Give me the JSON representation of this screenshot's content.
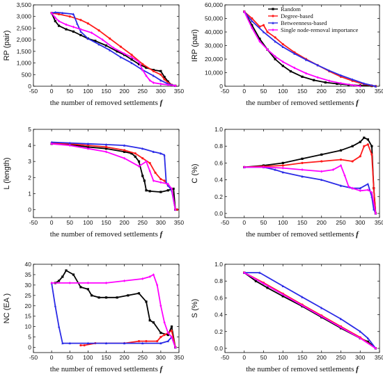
{
  "series_colors": {
    "Random": "#000000",
    "Degree-based": "#ff1a1a",
    "Betweenness-based": "#2a2ae6",
    "Single node-removal importance": "#ff00ff"
  },
  "series_names": [
    "Random",
    "Degree-based",
    "Betweenness-based",
    "Single node-removal importance"
  ],
  "chart_data": [
    {
      "id": "rp",
      "type": "line",
      "title": "",
      "xlabel": "the number of removed settlements",
      "xlabel_symbol": "f",
      "ylabel": "RP (pair)",
      "xlim": [
        -50,
        350
      ],
      "ylim": [
        0,
        3500
      ],
      "xticks": [
        -50,
        0,
        50,
        100,
        150,
        200,
        250,
        300,
        350
      ],
      "yticks": [
        0,
        500,
        1000,
        1500,
        2000,
        2500,
        3000,
        3500
      ],
      "ytick_labels": [
        "0",
        "500",
        "1,000",
        "1,500",
        "2,000",
        "2,500",
        "3,000",
        "3,500"
      ],
      "series": [
        {
          "key": "Random",
          "x": [
            0,
            10,
            20,
            40,
            60,
            80,
            100,
            120,
            150,
            180,
            200,
            220,
            240,
            260,
            280,
            300,
            310,
            320,
            330,
            340
          ],
          "y": [
            3150,
            2800,
            2600,
            2450,
            2350,
            2200,
            2050,
            1950,
            1750,
            1500,
            1350,
            1150,
            950,
            800,
            700,
            650,
            400,
            200,
            50,
            20
          ]
        },
        {
          "key": "Degree-based",
          "x": [
            0,
            20,
            50,
            80,
            100,
            130,
            160,
            190,
            220,
            250,
            280,
            300,
            310,
            320,
            330,
            340
          ],
          "y": [
            3150,
            3100,
            3000,
            2850,
            2700,
            2400,
            2050,
            1700,
            1350,
            950,
            650,
            500,
            300,
            150,
            60,
            20
          ]
        },
        {
          "key": "Betweenness-based",
          "x": [
            0,
            10,
            30,
            60,
            70,
            80,
            100,
            130,
            160,
            190,
            220,
            250,
            280,
            300,
            320,
            340
          ],
          "y": [
            3150,
            3180,
            3150,
            3100,
            2700,
            2350,
            2050,
            1800,
            1550,
            1250,
            1000,
            700,
            450,
            250,
            100,
            20
          ]
        },
        {
          "key": "Single node-removal importance",
          "x": [
            0,
            10,
            20,
            40,
            60,
            80,
            110,
            140,
            170,
            200,
            220,
            240,
            250,
            260,
            270,
            280,
            300,
            320,
            340
          ],
          "y": [
            3150,
            2950,
            2800,
            2650,
            2550,
            2450,
            2300,
            2000,
            1650,
            1400,
            1250,
            1050,
            700,
            450,
            250,
            150,
            100,
            60,
            20
          ]
        }
      ]
    },
    {
      "id": "irp",
      "type": "line",
      "title": "",
      "xlabel": "the number of  removed settlements",
      "xlabel_symbol": "f",
      "ylabel": "IRP (pari)",
      "xlim": [
        -50,
        350
      ],
      "ylim": [
        0,
        60000
      ],
      "xticks": [
        -50,
        0,
        50,
        100,
        150,
        200,
        250,
        300,
        350
      ],
      "yticks": [
        0,
        10000,
        20000,
        30000,
        40000,
        50000,
        60000
      ],
      "ytick_labels": [
        "0",
        "10,000",
        "20,000",
        "30,000",
        "40,000",
        "50,000",
        "60,000"
      ],
      "legend": {
        "placement": "top-right",
        "entries": [
          "Random",
          "Degree-based",
          "Betweenness-based",
          "Single node-removal importance"
        ]
      },
      "series": [
        {
          "key": "Random",
          "x": [
            0,
            20,
            40,
            60,
            80,
            100,
            120,
            150,
            180,
            210,
            240,
            270,
            300,
            330,
            340
          ],
          "y": [
            55000,
            45000,
            35000,
            27000,
            20000,
            15000,
            11000,
            7000,
            4500,
            2800,
            1800,
            1000,
            500,
            200,
            0
          ]
        },
        {
          "key": "Degree-based",
          "x": [
            0,
            20,
            40,
            50,
            60,
            80,
            100,
            130,
            160,
            190,
            220,
            250,
            280,
            310,
            330,
            340
          ],
          "y": [
            55000,
            50000,
            44000,
            45000,
            40000,
            36000,
            31000,
            25000,
            20000,
            15500,
            11000,
            7000,
            4000,
            1500,
            500,
            0
          ]
        },
        {
          "key": "Betweenness-based",
          "x": [
            0,
            20,
            50,
            80,
            100,
            130,
            160,
            190,
            220,
            250,
            280,
            310,
            340
          ],
          "y": [
            55000,
            48000,
            40000,
            33000,
            29000,
            24000,
            19500,
            15500,
            11500,
            8000,
            5000,
            2000,
            0
          ]
        },
        {
          "key": "Single node-removal importance",
          "x": [
            0,
            20,
            40,
            60,
            80,
            100,
            130,
            160,
            190,
            220,
            250,
            280,
            300
          ],
          "y": [
            55000,
            43000,
            33000,
            27000,
            22000,
            18000,
            13500,
            9500,
            6500,
            4000,
            2200,
            800,
            0
          ]
        }
      ]
    },
    {
      "id": "l",
      "type": "line",
      "title": "",
      "xlabel": "the number of removed settlements",
      "xlabel_symbol": "f",
      "ylabel": "L (length)",
      "xlim": [
        -50,
        350
      ],
      "ylim": [
        -0.5,
        5
      ],
      "xticks": [
        -50,
        0,
        50,
        100,
        150,
        200,
        250,
        300,
        350
      ],
      "yticks": [
        0,
        1,
        2,
        3,
        4,
        5
      ],
      "ytick_labels": [
        "0",
        "1",
        "2",
        "3",
        "4",
        "5"
      ],
      "series": [
        {
          "key": "Random",
          "x": [
            0,
            50,
            100,
            150,
            200,
            220,
            230,
            240,
            250,
            255,
            260,
            270,
            300,
            320,
            335,
            340,
            345
          ],
          "y": [
            4.1,
            4.05,
            3.9,
            3.8,
            3.6,
            3.5,
            3.3,
            3.0,
            2.1,
            1.8,
            1.2,
            1.15,
            1.1,
            1.2,
            1.3,
            0.0,
            0.0
          ]
        },
        {
          "key": "Degree-based",
          "x": [
            0,
            50,
            100,
            150,
            200,
            230,
            250,
            270,
            285,
            300,
            310,
            320,
            330,
            340,
            345
          ],
          "y": [
            4.15,
            4.1,
            4.0,
            3.9,
            3.7,
            3.5,
            3.2,
            2.9,
            2.3,
            1.9,
            1.8,
            1.5,
            1.3,
            0.0,
            0.0
          ]
        },
        {
          "key": "Betweenness-based",
          "x": [
            0,
            50,
            100,
            150,
            200,
            250,
            280,
            300,
            310,
            315,
            320,
            330,
            340
          ],
          "y": [
            4.2,
            4.15,
            4.1,
            4.05,
            4.0,
            3.8,
            3.6,
            3.5,
            3.4,
            1.7,
            1.5,
            1.2,
            0.0
          ]
        },
        {
          "key": "Single node-removal importance",
          "x": [
            0,
            50,
            100,
            150,
            200,
            240,
            260,
            270,
            280,
            300,
            320,
            330,
            340
          ],
          "y": [
            4.1,
            4.0,
            3.8,
            3.6,
            3.2,
            2.7,
            3.0,
            2.4,
            1.8,
            1.7,
            1.6,
            1.3,
            0.0
          ]
        }
      ]
    },
    {
      "id": "c",
      "type": "line",
      "title": "",
      "xlabel": "the number of removed settlements",
      "xlabel_symbol": "f",
      "ylabel": "C (%)",
      "xlim": [
        -50,
        350
      ],
      "ylim": [
        -0.05,
        1.0
      ],
      "xticks": [
        -50,
        0,
        50,
        100,
        150,
        200,
        250,
        300,
        350
      ],
      "yticks": [
        0,
        0.2,
        0.4,
        0.6,
        0.8,
        1.0
      ],
      "ytick_labels": [
        "0.0",
        "0.2",
        "0.4",
        "0.6",
        "0.8",
        "1.0"
      ],
      "series": [
        {
          "key": "Random",
          "x": [
            0,
            50,
            100,
            150,
            200,
            250,
            280,
            300,
            310,
            320,
            330,
            335,
            340
          ],
          "y": [
            0.55,
            0.57,
            0.6,
            0.65,
            0.7,
            0.75,
            0.8,
            0.85,
            0.9,
            0.88,
            0.8,
            0.3,
            0.0
          ]
        },
        {
          "key": "Degree-based",
          "x": [
            0,
            50,
            100,
            150,
            200,
            250,
            280,
            300,
            310,
            320,
            330,
            335,
            340
          ],
          "y": [
            0.55,
            0.56,
            0.57,
            0.6,
            0.62,
            0.64,
            0.62,
            0.68,
            0.8,
            0.82,
            0.7,
            0.3,
            0.0
          ]
        },
        {
          "key": "Betweenness-based",
          "x": [
            0,
            50,
            80,
            100,
            150,
            200,
            250,
            280,
            300,
            320,
            330,
            335,
            340
          ],
          "y": [
            0.55,
            0.55,
            0.52,
            0.49,
            0.44,
            0.4,
            0.33,
            0.3,
            0.3,
            0.35,
            0.2,
            0.05,
            0.0
          ]
        },
        {
          "key": "Single node-removal importance",
          "x": [
            0,
            50,
            100,
            150,
            200,
            230,
            250,
            260,
            270,
            280,
            300,
            320,
            330,
            340
          ],
          "y": [
            0.55,
            0.55,
            0.54,
            0.52,
            0.5,
            0.52,
            0.57,
            0.45,
            0.32,
            0.3,
            0.27,
            0.28,
            0.25,
            0.0
          ]
        }
      ]
    },
    {
      "id": "nc",
      "type": "line",
      "title": "",
      "xlabel": "the number of removed settlements",
      "xlabel_symbol": "f",
      "ylabel": "NC (EA )",
      "xlim": [
        -50,
        350
      ],
      "ylim": [
        -2.5,
        40
      ],
      "xticks": [
        -50,
        0,
        50,
        100,
        150,
        200,
        250,
        300,
        350
      ],
      "yticks": [
        0,
        5,
        10,
        15,
        20,
        25,
        30,
        35,
        40
      ],
      "ytick_labels": [
        "0",
        "5",
        "10",
        "15",
        "20",
        "25",
        "30",
        "35",
        "40"
      ],
      "series": [
        {
          "key": "Random",
          "x": [
            10,
            20,
            30,
            40,
            60,
            80,
            100,
            110,
            130,
            150,
            180,
            210,
            240,
            260,
            270,
            280,
            300,
            320,
            330,
            340
          ],
          "y": [
            31,
            32,
            34,
            37,
            35,
            29,
            28,
            25,
            24,
            24,
            24,
            25,
            26,
            22,
            13,
            12,
            7,
            6,
            10,
            0
          ]
        },
        {
          "key": "Degree-based",
          "x": [
            80,
            90,
            120,
            200,
            240,
            260,
            290,
            300,
            310,
            320,
            330,
            340
          ],
          "y": [
            1,
            1,
            2,
            2,
            3,
            3,
            3,
            5,
            6,
            7,
            8,
            0
          ]
        },
        {
          "key": "Betweenness-based",
          "x": [
            0,
            10,
            20,
            30,
            50,
            100,
            150,
            200,
            250,
            300,
            320,
            330,
            340
          ],
          "y": [
            31,
            20,
            10,
            2,
            2,
            2,
            2,
            2,
            2,
            2,
            3,
            5,
            0
          ]
        },
        {
          "key": "Single node-removal importance",
          "x": [
            0,
            50,
            100,
            150,
            200,
            250,
            270,
            280,
            290,
            300,
            310,
            320,
            330,
            340
          ],
          "y": [
            31,
            31,
            31,
            31,
            32,
            33,
            34,
            35,
            30,
            20,
            12,
            7,
            5,
            0
          ]
        }
      ]
    },
    {
      "id": "s",
      "type": "line",
      "title": "",
      "xlabel": "the number of removed settlements",
      "xlabel_symbol": "f",
      "ylabel": "S (%)",
      "xlim": [
        -50,
        350
      ],
      "ylim": [
        -0.05,
        1.0
      ],
      "xticks": [
        -50,
        0,
        50,
        100,
        150,
        200,
        250,
        300,
        350
      ],
      "yticks": [
        0,
        0.2,
        0.4,
        0.6,
        0.8,
        1.0
      ],
      "ytick_labels": [
        "0.0",
        "0.2",
        "0.4",
        "0.6",
        "0.8",
        "1.0"
      ],
      "series": [
        {
          "key": "Random",
          "x": [
            0,
            30,
            60,
            100,
            150,
            200,
            250,
            300,
            320,
            340
          ],
          "y": [
            0.9,
            0.8,
            0.72,
            0.62,
            0.5,
            0.37,
            0.24,
            0.12,
            0.08,
            0.0
          ]
        },
        {
          "key": "Degree-based",
          "x": [
            0,
            50,
            100,
            150,
            200,
            250,
            300,
            340
          ],
          "y": [
            0.9,
            0.78,
            0.65,
            0.52,
            0.39,
            0.26,
            0.13,
            0.0
          ]
        },
        {
          "key": "Betweenness-based",
          "x": [
            0,
            40,
            100,
            150,
            200,
            250,
            300,
            320,
            340
          ],
          "y": [
            0.9,
            0.9,
            0.74,
            0.61,
            0.48,
            0.35,
            0.2,
            0.12,
            0.0
          ]
        },
        {
          "key": "Single node-removal importance",
          "x": [
            0,
            50,
            100,
            150,
            200,
            250,
            300,
            340
          ],
          "y": [
            0.9,
            0.77,
            0.64,
            0.51,
            0.38,
            0.25,
            0.12,
            0.0
          ]
        }
      ]
    }
  ]
}
